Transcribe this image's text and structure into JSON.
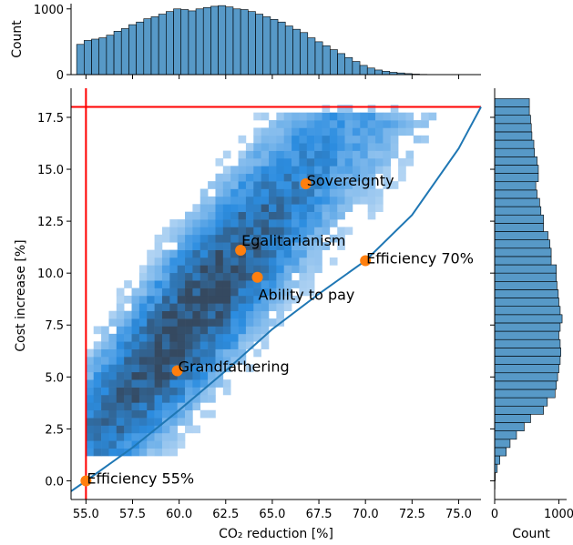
{
  "chart_data": {
    "type": "heatmap",
    "main": {
      "xlabel": "CO₂ reduction [%]",
      "ylabel": "Cost increase [%]",
      "xlim": [
        54.2,
        76.2
      ],
      "ylim": [
        -0.9,
        18.9
      ],
      "xticks": [
        "55.0",
        "57.5",
        "60.0",
        "62.5",
        "65.0",
        "67.5",
        "70.0",
        "72.5",
        "75.0"
      ],
      "yticks": [
        "0.0",
        "2.5",
        "5.0",
        "7.5",
        "10.0",
        "12.5",
        "15.0",
        "17.5"
      ],
      "reference_lines": {
        "vertical_x": 55.0,
        "horizontal_y": 18.0,
        "color": "#ff0000"
      },
      "frontier_curve": {
        "color": "#1f77b4",
        "x": [
          54.2,
          55.0,
          57.5,
          60.0,
          62.5,
          65.0,
          67.5,
          70.0,
          72.5,
          75.0,
          76.2
        ],
        "y": [
          -0.5,
          0.0,
          1.6,
          3.4,
          5.3,
          7.3,
          9.0,
          10.6,
          12.8,
          16.0,
          18.0
        ]
      },
      "points": [
        {
          "label": "Sovereignty",
          "x": 66.8,
          "y": 14.3
        },
        {
          "label": "Egalitarianism",
          "x": 63.3,
          "y": 11.1
        },
        {
          "label": "Efficiency 70%",
          "x": 70.0,
          "y": 10.6
        },
        {
          "label": "Ability to pay",
          "x": 64.2,
          "y": 9.8
        },
        {
          "label": "Grandfathering",
          "x": 59.9,
          "y": 5.3
        },
        {
          "label": "Efficiency 55%",
          "x": 55.0,
          "y": 0.0
        }
      ],
      "point_color": "#ff7f0e",
      "heatmap_color": "#1f77b4"
    },
    "top_histogram": {
      "ylabel": "Count",
      "yticks": [
        "0",
        "1000"
      ],
      "ylim": [
        0,
        1080
      ],
      "bin_start": 54.5,
      "bin_width": 0.4,
      "counts": [
        460,
        520,
        540,
        560,
        600,
        660,
        700,
        760,
        800,
        850,
        880,
        920,
        960,
        1000,
        990,
        970,
        1000,
        1020,
        1040,
        1050,
        1030,
        1000,
        990,
        960,
        920,
        880,
        840,
        800,
        740,
        690,
        640,
        560,
        500,
        440,
        380,
        320,
        260,
        200,
        140,
        100,
        70,
        50,
        35,
        25,
        15,
        8,
        4,
        2
      ]
    },
    "right_histogram": {
      "xlabel": "Count",
      "xticks": [
        "0",
        "1000"
      ],
      "xlim": [
        0,
        1120
      ],
      "bin_start": -0.4,
      "bin_width": 0.4,
      "counts": [
        5,
        10,
        40,
        80,
        180,
        240,
        340,
        460,
        560,
        760,
        820,
        940,
        960,
        980,
        1000,
        1020,
        1030,
        1020,
        1000,
        1020,
        1050,
        1020,
        1000,
        990,
        970,
        960,
        960,
        880,
        880,
        860,
        830,
        760,
        760,
        720,
        700,
        660,
        640,
        680,
        680,
        660,
        620,
        610,
        580,
        570,
        560,
        540,
        540
      ]
    }
  }
}
